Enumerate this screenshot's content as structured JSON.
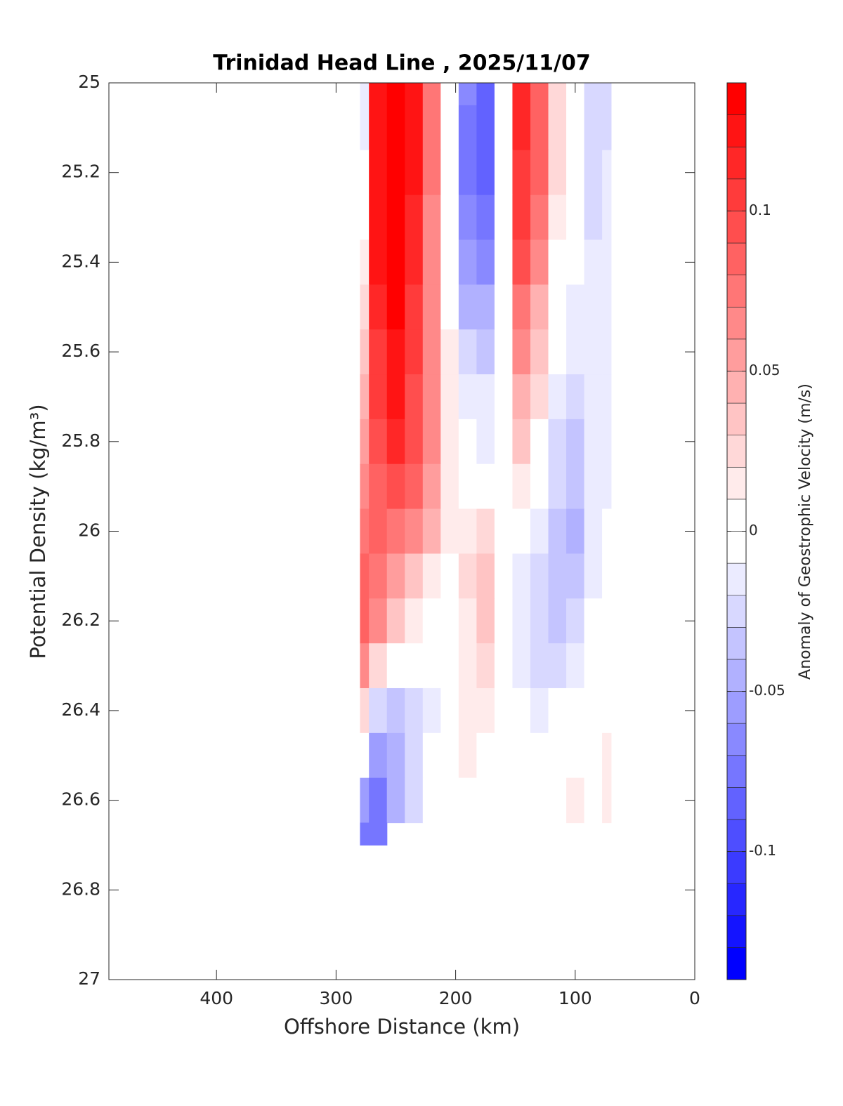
{
  "chart_data": {
    "type": "contourf",
    "title": "Trinidad Head Line , 2025/11/07",
    "x_label": "Offshore Distance (km)",
    "y_label": "Potential Density (kg/m³)",
    "colorbar_label": "Anomaly of Geostrophic Velocity (m/s)",
    "xlim": [
      490,
      0
    ],
    "xticks": [
      400,
      300,
      200,
      100,
      0
    ],
    "ylim": [
      25,
      27
    ],
    "yticks": [
      25,
      25.2,
      25.4,
      25.6,
      25.8,
      26,
      26.2,
      26.4,
      26.6,
      26.8,
      27
    ],
    "y_reversed": true,
    "clim": [
      -0.14,
      0.14
    ],
    "level_step": 0.01,
    "cticks": [
      0.1,
      0.05,
      0,
      -0.05,
      -0.1
    ],
    "x": [
      280,
      265,
      250,
      235,
      220,
      205,
      190,
      175,
      160,
      145,
      130,
      115,
      100,
      85,
      70
    ],
    "y": [
      25.0,
      25.1,
      25.2,
      25.3,
      25.4,
      25.5,
      25.6,
      25.7,
      25.8,
      25.9,
      26.0,
      26.1,
      26.2,
      26.3,
      26.4,
      26.5,
      26.6,
      26.7
    ],
    "z": [
      [
        -0.02,
        0.12,
        0.14,
        0.12,
        0.07,
        0.0,
        -0.07,
        -0.09,
        0.0,
        0.11,
        0.08,
        0.02,
        0.0,
        -0.03,
        -0.03
      ],
      [
        -0.02,
        0.12,
        0.14,
        0.12,
        0.07,
        0.0,
        -0.08,
        -0.09,
        0.0,
        0.11,
        0.08,
        0.02,
        0.0,
        -0.03,
        -0.03
      ],
      [
        -0.01,
        0.12,
        0.14,
        0.12,
        0.07,
        0.0,
        -0.08,
        -0.09,
        0.0,
        0.1,
        0.08,
        0.02,
        0.0,
        -0.03,
        -0.02
      ],
      [
        0.0,
        0.12,
        0.14,
        0.11,
        0.06,
        0.0,
        -0.07,
        -0.08,
        0.0,
        0.1,
        0.07,
        0.01,
        -0.01,
        -0.03,
        -0.02
      ],
      [
        0.01,
        0.12,
        0.13,
        0.11,
        0.06,
        0.0,
        -0.06,
        -0.07,
        0.0,
        0.09,
        0.06,
        0.0,
        -0.01,
        -0.02,
        -0.02
      ],
      [
        0.02,
        0.11,
        0.13,
        0.1,
        0.06,
        0.0,
        -0.05,
        -0.05,
        0.0,
        0.07,
        0.04,
        0.0,
        -0.02,
        -0.02,
        -0.02
      ],
      [
        0.03,
        0.1,
        0.12,
        0.1,
        0.06,
        0.01,
        -0.03,
        -0.04,
        0.0,
        0.06,
        0.03,
        -0.01,
        -0.02,
        -0.02,
        -0.02
      ],
      [
        0.04,
        0.1,
        0.12,
        0.09,
        0.06,
        0.01,
        -0.02,
        -0.02,
        0.0,
        0.04,
        0.02,
        -0.02,
        -0.03,
        -0.02,
        -0.02
      ],
      [
        0.05,
        0.09,
        0.11,
        0.09,
        0.06,
        0.01,
        -0.01,
        -0.02,
        0.0,
        0.03,
        0.0,
        -0.03,
        -0.04,
        -0.02,
        -0.02
      ],
      [
        0.06,
        0.08,
        0.09,
        0.08,
        0.05,
        0.01,
        0.0,
        0.0,
        0.0,
        0.01,
        -0.01,
        -0.03,
        -0.04,
        -0.02,
        -0.02
      ],
      [
        0.07,
        0.08,
        0.07,
        0.06,
        0.04,
        0.01,
        0.01,
        0.02,
        0.0,
        -0.01,
        -0.02,
        -0.04,
        -0.05,
        -0.02,
        -0.01
      ],
      [
        0.08,
        0.07,
        0.05,
        0.03,
        0.01,
        0.0,
        0.02,
        0.03,
        0.0,
        -0.02,
        -0.03,
        -0.04,
        -0.04,
        -0.02,
        -0.01
      ],
      [
        0.08,
        0.06,
        0.03,
        0.01,
        0.0,
        -0.01,
        0.01,
        0.03,
        0.0,
        -0.02,
        -0.03,
        -0.04,
        -0.03,
        0.0,
        -0.01
      ],
      [
        0.06,
        0.02,
        0.0,
        -0.01,
        -0.01,
        -0.01,
        0.01,
        0.02,
        0.0,
        -0.02,
        -0.03,
        -0.03,
        -0.02,
        0.0,
        -0.01
      ],
      [
        0.02,
        -0.03,
        -0.04,
        -0.03,
        -0.02,
        -0.01,
        0.01,
        0.01,
        0.0,
        -0.01,
        -0.02,
        -0.01,
        -0.01,
        0.0,
        0.0
      ],
      [
        0.0,
        -0.06,
        -0.05,
        -0.03,
        -0.01,
        0.0,
        0.01,
        0.0,
        0.0,
        -0.01,
        -0.01,
        0.0,
        0.0,
        0.0,
        0.01
      ],
      [
        -0.06,
        -0.08,
        -0.05,
        -0.03,
        -0.01,
        0.0,
        0.0,
        0.0,
        0.0,
        0.0,
        0.0,
        0.0,
        0.01,
        0.0,
        0.01
      ],
      [
        -0.08,
        -0.08,
        null,
        null,
        null,
        null,
        null,
        null,
        null,
        null,
        null,
        null,
        null,
        null,
        null
      ]
    ]
  }
}
